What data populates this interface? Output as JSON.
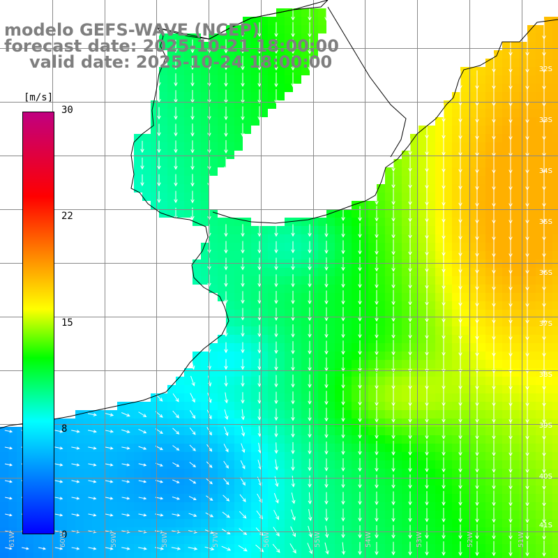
{
  "title": {
    "line1": "modelo GEFS-WAVE (NCEP)",
    "line2": "forecast date: 2025-10-21 18:00:00",
    "line3": "valid date: 2025-10-24 18:00:00"
  },
  "colorbar": {
    "unit": "[m/s]",
    "ticks": [
      "30",
      "22",
      "15",
      "8",
      "0"
    ],
    "tick_values": [
      30,
      22,
      15,
      8,
      0
    ],
    "min": 0,
    "max": 30,
    "colors": [
      "#0000ff",
      "#00ffff",
      "#00ff00",
      "#ffff00",
      "#ff8000",
      "#ff0000",
      "#c00080"
    ],
    "color_stops": [
      0,
      8,
      12.5,
      16,
      20,
      24,
      30
    ]
  },
  "lat_labels": [
    "32S",
    "33S",
    "34S",
    "35S",
    "36S",
    "37S",
    "38S",
    "39S",
    "40S",
    "41S"
  ],
  "lat_values": [
    -32,
    -33,
    -34,
    -35,
    -36,
    -37,
    -38,
    -39,
    -40,
    -41
  ],
  "lon_labels": [
    "61W",
    "60W",
    "59W",
    "58W",
    "57W",
    "56W",
    "55W",
    "54W",
    "53W",
    "52W",
    "51W"
  ],
  "lon_values": [
    -61,
    -60,
    -59,
    -58,
    -57,
    -56,
    -55,
    -54,
    -53,
    -52,
    -51
  ],
  "map_extent": {
    "lon_min": -62,
    "lon_max": -51.3,
    "lat_min": -41.5,
    "lat_max": -31.1
  },
  "colors": {
    "coastline": "#000000",
    "grid": "#888888",
    "arrows": "#ffffff",
    "land": "#ffffff",
    "title": "#7f7f7f"
  }
}
